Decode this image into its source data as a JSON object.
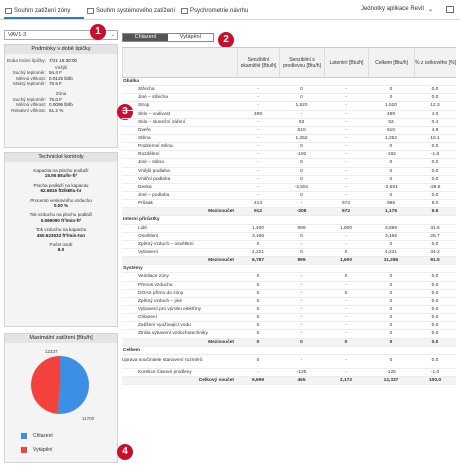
{
  "tabs": [
    {
      "label": "Souhrn zatížení zóny",
      "active": true
    },
    {
      "label": "Souhrn systémového zatížení",
      "active": false
    },
    {
      "label": "Psychrometrie návrhu",
      "active": false
    }
  ],
  "units_label": "Jednotky aplikace Revit",
  "units_arrow": "⌄",
  "zone_select": {
    "value": "VAV1-3",
    "arrow": "⌄"
  },
  "peak": {
    "title": "Podmínky v době špičky",
    "time_key": "Doba trvání špičky:",
    "time_val": "7/21 15:30:00",
    "outdoor_label": "Vnější",
    "outdoor": [
      {
        "k": "Suchý teploměr:",
        "v": "94.4 F"
      },
      {
        "k": "Měrná vlhkost:",
        "v": "0.0125 lb/lb"
      },
      {
        "k": "Mokrý teploměr:",
        "v": "76.5 F"
      }
    ],
    "zone_label": "Zóna",
    "zone": [
      {
        "k": "Suchý teploměr:",
        "v": "75.0 F"
      },
      {
        "k": "Měrná vlhkost:",
        "v": "0.0095 lb/lb"
      },
      {
        "k": "Relativní vlhkost:",
        "v": "51.2 %"
      }
    ]
  },
  "checks": {
    "title": "Technické kontroly",
    "items": [
      {
        "k": "Kapacita na plochu podlaží",
        "v": "15.95 Btu/hr-ft²"
      },
      {
        "k": "Plocha podlaží na kapacitu",
        "v": "62.6816 ft2/kBtu-hr"
      },
      {
        "k": "Procento venkovního vzduchu",
        "v": "0.00 %"
      },
      {
        "k": "Tok vzduchu na plochu podlaží",
        "v": "0.599090 ft³/min-ft²"
      },
      {
        "k": "Tok vzduchu na kapacitu",
        "v": "450.623533 ft³/min-ton"
      },
      {
        "k": "Počet osob",
        "v": "8.0"
      }
    ]
  },
  "max_load": {
    "title": "Maximální zatížení [Btu/h]",
    "legend": [
      {
        "label": "Chlazení",
        "color": "#3d8fe6"
      },
      {
        "label": "Vytápění",
        "color": "#f2423b"
      }
    ]
  },
  "chart_data": {
    "type": "pie",
    "title": "Maximální zatížení [Btu/h]",
    "labels": [
      "Chlazení",
      "Vytápění"
    ],
    "values": [
      12337,
      11700
    ],
    "value_labels": [
      "12337",
      "11700"
    ]
  },
  "toggle": {
    "cooling": "Chlazení",
    "heating": "Vytápění"
  },
  "callouts": [
    "1",
    "2",
    "3",
    "4"
  ],
  "table": {
    "headers": [
      "",
      "Senzibilní okamžité [Btu/h]",
      "Senzibilní s prodlevou [Btu/h]",
      "Latentní [Btu/h]",
      "Celkem [Btu/h]",
      "% z celkového [%]"
    ],
    "rows": [
      {
        "t": "sec",
        "c": [
          "Obálka",
          "",
          "",
          "",
          "",
          ""
        ]
      },
      {
        "t": "item",
        "c": [
          "Střecha",
          "-",
          "0",
          "-",
          "0",
          "0.0"
        ]
      },
      {
        "t": "item",
        "c": [
          "Jiné – střecha",
          "-",
          "0",
          "-",
          "0",
          "0.0"
        ]
      },
      {
        "t": "item",
        "c": [
          "Strop",
          "-",
          "1,520",
          "-",
          "1,520",
          "12.3"
        ]
      },
      {
        "t": "item",
        "c": [
          "Sklo – vodivost",
          "499",
          "-",
          "-",
          "499",
          "4.0"
        ]
      },
      {
        "t": "item",
        "c": [
          "Sklo – sluneční záření",
          "-",
          "53",
          "-",
          "53",
          "0.4"
        ]
      },
      {
        "t": "item",
        "c": [
          "Dveře",
          "-",
          "610",
          "-",
          "610",
          "4.9"
        ]
      },
      {
        "t": "item",
        "c": [
          "Stěna",
          "-",
          "1,252",
          "-",
          "1,252",
          "10.1"
        ]
      },
      {
        "t": "item",
        "c": [
          "Podzemní stěna",
          "-",
          "0",
          "-",
          "0",
          "0.0"
        ]
      },
      {
        "t": "item",
        "c": [
          "Rozdělení",
          "-",
          "-192",
          "-",
          "-192",
          "-1.6"
        ]
      },
      {
        "t": "item",
        "c": [
          "Jiné – stěna",
          "-",
          "0",
          "-",
          "0",
          "0.0"
        ]
      },
      {
        "t": "item",
        "c": [
          "Vnější podlaha",
          "-",
          "0",
          "-",
          "0",
          "0.0"
        ]
      },
      {
        "t": "item",
        "c": [
          "Vnitřní podlaha",
          "-",
          "0",
          "-",
          "0",
          "0.0"
        ]
      },
      {
        "t": "item",
        "c": [
          "Deska",
          "-",
          "-3,551",
          "-",
          "-3,551",
          "-28.8"
        ]
      },
      {
        "t": "item",
        "c": [
          "Jiné – podlaha",
          "-",
          "0",
          "-",
          "0",
          "0.0"
        ]
      },
      {
        "t": "item",
        "c": [
          "Průsak",
          "413",
          "-",
          "572",
          "986",
          "8.0"
        ]
      },
      {
        "t": "tot",
        "c": [
          "Mezisoučet",
          "912",
          "-308",
          "572",
          "1,176",
          "9.5"
        ]
      },
      {
        "t": "sec",
        "c": [
          "Interní přírůstky",
          "",
          "",
          "",
          "",
          ""
        ]
      },
      {
        "t": "item",
        "c": [
          "Lidé",
          "1,400",
          "899",
          "1,600",
          "3,899",
          "31.6"
        ]
      },
      {
        "t": "item",
        "c": [
          "Osvětlení",
          "3,166",
          "0",
          "-",
          "3,166",
          "25.7"
        ]
      },
      {
        "t": "item",
        "c": [
          "Zpětný vzduch – osvětlení",
          "0",
          "-",
          "-",
          "0",
          "0.0"
        ]
      },
      {
        "t": "item",
        "c": [
          "Vybavení",
          "4,221",
          "0",
          "0",
          "4,221",
          "34.2"
        ]
      },
      {
        "t": "tot",
        "c": [
          "Mezisoučet",
          "8,787",
          "899",
          "1,600",
          "11,286",
          "91.5"
        ]
      },
      {
        "t": "sec",
        "c": [
          "Systémy",
          "",
          "",
          "",
          "",
          ""
        ]
      },
      {
        "t": "item",
        "c": [
          "Ventilace zóny",
          "0",
          "-",
          "0",
          "0",
          "0.0"
        ]
      },
      {
        "t": "item",
        "c": [
          "Přenos vzduchu",
          "0",
          "-",
          "-",
          "0",
          "0.0"
        ]
      },
      {
        "t": "item",
        "c": [
          "DOAS přímo do zóny",
          "0",
          "-",
          "0",
          "0",
          "0.0"
        ]
      },
      {
        "t": "item",
        "c": [
          "Zpětný vzduch – jiné",
          "0",
          "-",
          "-",
          "0",
          "0.0"
        ]
      },
      {
        "t": "item",
        "c": [
          "Vybavení pro výrobu elektřiny",
          "0",
          "-",
          "-",
          "0",
          "0.0"
        ]
      },
      {
        "t": "item",
        "c": [
          "Chlazení",
          "0",
          "-",
          "-",
          "0",
          "0.0"
        ]
      },
      {
        "t": "item",
        "c": [
          "Zatížení využívající vodu",
          "0",
          "-",
          "-",
          "0",
          "0.0"
        ]
      },
      {
        "t": "item",
        "c": [
          "Ztráta vybavení vzduchotechniky",
          "0",
          "-",
          "-",
          "0",
          "0.0"
        ]
      },
      {
        "t": "tot",
        "c": [
          "Mezisoučet",
          "0",
          "0",
          "0",
          "0",
          "0.0"
        ]
      },
      {
        "t": "sec",
        "c": [
          "Celkem",
          "",
          "",
          "",
          "",
          ""
        ]
      },
      {
        "t": "tall",
        "c": [
          "Úprava součinitele stanovení rozměrů",
          "0",
          "-",
          "-",
          "0",
          "0.0"
        ]
      },
      {
        "t": "item",
        "c": [
          "Korekce časové prodlevy",
          "-",
          "-125",
          "-",
          "-125",
          "-1.0"
        ]
      },
      {
        "t": "tot",
        "c": [
          "Celkový součet",
          "9,699",
          "465",
          "2,172",
          "12,337",
          "100.0"
        ]
      }
    ]
  }
}
